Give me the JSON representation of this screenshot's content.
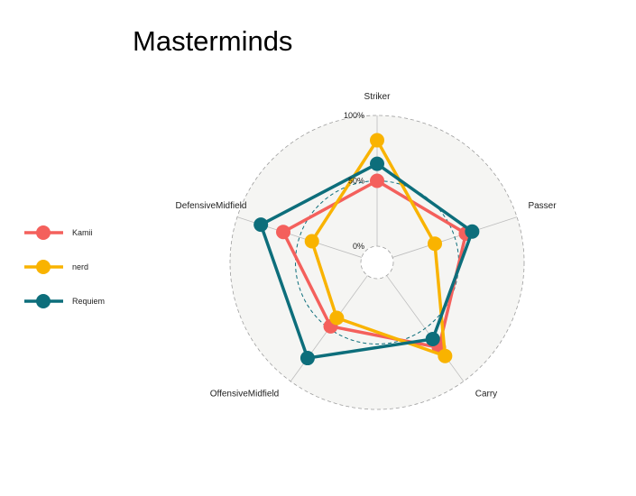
{
  "chart_data": {
    "type": "radar",
    "title": "Masterminds",
    "axes": [
      "Striker",
      "Passer",
      "Carry",
      "OffensiveMidfield",
      "DefensiveMidfield"
    ],
    "grid_labels": [
      "0%",
      "50%",
      "100%"
    ],
    "grid_values": [
      0,
      0.5,
      1.0
    ],
    "range": [
      0,
      1
    ],
    "legend_position": "left",
    "series": [
      {
        "name": "Kamii",
        "color": "#f4605c",
        "values": [
          0.5,
          0.59,
          0.68,
          0.48,
          0.63
        ]
      },
      {
        "name": "nerd",
        "color": "#f9b300",
        "values": [
          0.81,
          0.34,
          0.76,
          0.4,
          0.4
        ]
      },
      {
        "name": "Requiem",
        "color": "#0d6e7b",
        "values": [
          0.63,
          0.64,
          0.6,
          0.78,
          0.81
        ]
      }
    ]
  }
}
